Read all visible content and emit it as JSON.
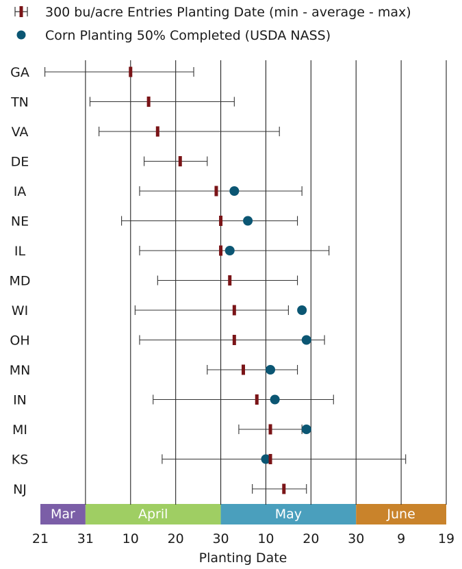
{
  "colors": {
    "mark": "#7a1417",
    "dot": "#0b5673",
    "whisker": "#333333",
    "grid": "#222222",
    "mar": "#7b5ea7",
    "april": "#9fce63",
    "may": "#4a9fbd",
    "june": "#c9832b"
  },
  "chart_data": {
    "type": "range-dot",
    "xlabel": "Planting Date",
    "legend": {
      "range": "300 bu/acre Entries Planting Date (min - average - max)",
      "dot": "Corn Planting 50% Completed (USDA NASS)"
    },
    "x_ticks": [
      {
        "label": "21",
        "day": -10
      },
      {
        "label": "31",
        "day": 0
      },
      {
        "label": "10",
        "day": 10
      },
      {
        "label": "20",
        "day": 20
      },
      {
        "label": "30",
        "day": 30
      },
      {
        "label": "10",
        "day": 40
      },
      {
        "label": "20",
        "day": 50
      },
      {
        "label": "30",
        "day": 60
      },
      {
        "label": "9",
        "day": 70
      },
      {
        "label": "19",
        "day": 80
      }
    ],
    "x_unit": "days after March 31",
    "xlim": [
      -10,
      80
    ],
    "months": [
      {
        "label": "Mar",
        "start": -10,
        "end": 0,
        "color": "#7b5ea7"
      },
      {
        "label": "April",
        "start": 0,
        "end": 30,
        "color": "#9fce63"
      },
      {
        "label": "May",
        "start": 30,
        "end": 60,
        "color": "#4a9fbd"
      },
      {
        "label": "June",
        "start": 60,
        "end": 80,
        "color": "#c9832b"
      }
    ],
    "states": [
      {
        "state": "GA",
        "min": -9,
        "avg": 10,
        "max": 24,
        "usda": null
      },
      {
        "state": "TN",
        "min": 1,
        "avg": 14,
        "max": 33,
        "usda": null
      },
      {
        "state": "VA",
        "min": 3,
        "avg": 16,
        "max": 43,
        "usda": null
      },
      {
        "state": "DE",
        "min": 13,
        "avg": 21,
        "max": 27,
        "usda": null
      },
      {
        "state": "IA",
        "min": 12,
        "avg": 29,
        "max": 48,
        "usda": 33
      },
      {
        "state": "NE",
        "min": 8,
        "avg": 30,
        "max": 47,
        "usda": 36
      },
      {
        "state": "IL",
        "min": 12,
        "avg": 30,
        "max": 54,
        "usda": 32
      },
      {
        "state": "MD",
        "min": 16,
        "avg": 32,
        "max": 47,
        "usda": null
      },
      {
        "state": "WI",
        "min": 11,
        "avg": 33,
        "max": 45,
        "usda": 48
      },
      {
        "state": "OH",
        "min": 12,
        "avg": 33,
        "max": 53,
        "usda": 49
      },
      {
        "state": "MN",
        "min": 27,
        "avg": 35,
        "max": 47,
        "usda": 41
      },
      {
        "state": "IN",
        "min": 15,
        "avg": 38,
        "max": 55,
        "usda": 42
      },
      {
        "state": "MI",
        "min": 34,
        "avg": 41,
        "max": 48,
        "usda": 49
      },
      {
        "state": "KS",
        "min": 17,
        "avg": 41,
        "max": 71,
        "usda": 40
      },
      {
        "state": "NJ",
        "min": 37,
        "avg": 44,
        "max": 49,
        "usda": null
      }
    ]
  }
}
